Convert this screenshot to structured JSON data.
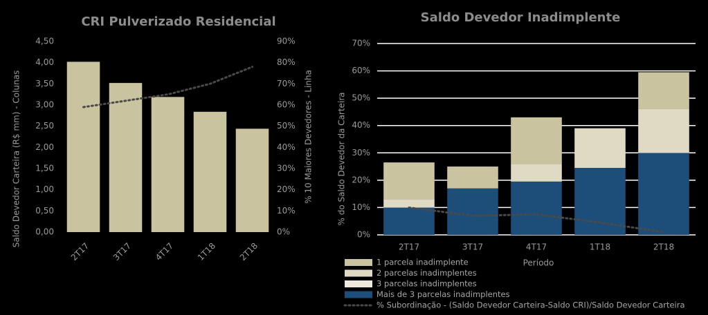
{
  "chart_data": [
    {
      "type": "bar_line",
      "title": "CRI Pulverizado Residencial",
      "y_label": "Saldo Devedor Carteira (R$ mm) - Colunas",
      "y2_label": "% 10 Maiores Devedores - Linha",
      "categories": [
        "2T17",
        "3T17",
        "4T17",
        "1T18",
        "2T18"
      ],
      "series": [
        {
          "color": "#c9c3a0",
          "values": [
            4.02,
            3.52,
            3.19,
            2.84,
            2.44
          ]
        },
        {
          "color": "#4a4a4a",
          "axis": "y2",
          "values": [
            59,
            62,
            65,
            70,
            78
          ]
        }
      ],
      "ylim": [
        0,
        4.5
      ],
      "yticks": [
        {
          "value": 0,
          "label": "0,00"
        },
        {
          "value": 0.5,
          "label": "0,50"
        },
        {
          "value": 1,
          "label": "1,00"
        },
        {
          "value": 1.5,
          "label": "1,50"
        },
        {
          "value": 2,
          "label": "2,00"
        },
        {
          "value": 2.5,
          "label": "2,50"
        },
        {
          "value": 3,
          "label": "3,00"
        },
        {
          "value": 3.5,
          "label": "3,50"
        },
        {
          "value": 4,
          "label": "4,00"
        },
        {
          "value": 4.5,
          "label": "4,50"
        }
      ],
      "y2lim": [
        0,
        90
      ],
      "y2ticks": [
        {
          "value": 0,
          "label": "0%"
        },
        {
          "value": 10,
          "label": "10%"
        },
        {
          "value": 20,
          "label": "20%"
        },
        {
          "value": 30,
          "label": "30%"
        },
        {
          "value": 40,
          "label": "40%"
        },
        {
          "value": 50,
          "label": "50%"
        },
        {
          "value": 60,
          "label": "60%"
        },
        {
          "value": 70,
          "label": "70%"
        },
        {
          "value": 80,
          "label": "80%"
        },
        {
          "value": 90,
          "label": "90%"
        }
      ],
      "grid": false
    },
    {
      "type": "stacked_bar_line",
      "title": "Saldo Devedor Inadimplente",
      "y_label": "% do Saldo Devedor da Carteira",
      "x_label": "Período",
      "categories": [
        "2T17",
        "3T17",
        "4T17",
        "1T18",
        "2T18"
      ],
      "series": [
        {
          "name": "Mais de 3 parcelas inadimplentes",
          "color": "#1d4e7a",
          "values": [
            10,
            17,
            19.5,
            24.5,
            30
          ]
        },
        {
          "name": "3 parcelas inadimplentes",
          "color": "#eee9dc",
          "values": [
            0,
            0,
            0,
            0,
            0
          ]
        },
        {
          "name": "2 parcelas inadimplentes",
          "color": "#e0d9c3",
          "values": [
            3,
            0,
            6.5,
            14.5,
            16
          ]
        },
        {
          "name": "1 parcela inadimplente",
          "color": "#c9c3a0",
          "values": [
            13.5,
            8,
            17,
            0,
            13.5
          ]
        },
        {
          "name": "% Subordinação - (Saldo Devedor Carteira-Saldo CRI)/Saldo Devedor Carteira",
          "color": "#4a4a4a",
          "line": true,
          "values": [
            10,
            7,
            7.5,
            4.5,
            1
          ]
        }
      ],
      "ylim": [
        0,
        70
      ],
      "yticks": [
        {
          "value": 0,
          "label": "0%"
        },
        {
          "value": 10,
          "label": "10%"
        },
        {
          "value": 20,
          "label": "20%"
        },
        {
          "value": 30,
          "label": "30%"
        },
        {
          "value": 40,
          "label": "40%"
        },
        {
          "value": 50,
          "label": "50%"
        },
        {
          "value": 60,
          "label": "60%"
        },
        {
          "value": 70,
          "label": "70%"
        }
      ],
      "grid": true
    }
  ]
}
